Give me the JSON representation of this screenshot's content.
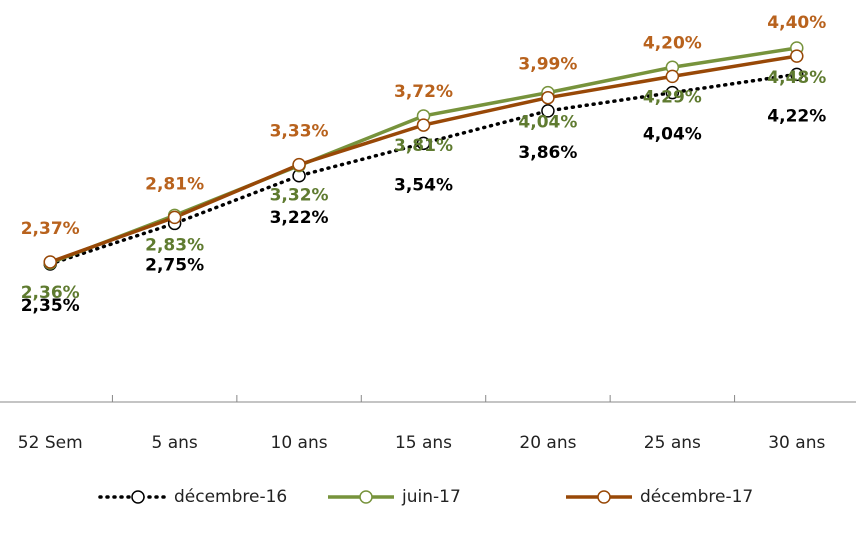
{
  "chart_data": {
    "type": "line",
    "categories": [
      "52 Sem",
      "5 ans",
      "10 ans",
      "15 ans",
      "20 ans",
      "25 ans",
      "30 ans"
    ],
    "series": [
      {
        "name": "décembre-16",
        "color": "#000000",
        "label_color": "#000000",
        "dash": "dotted",
        "values": [
          2.35,
          2.75,
          3.22,
          3.54,
          3.86,
          4.04,
          4.22
        ],
        "value_labels": [
          "2,35%",
          "2,75%",
          "3,22%",
          "3,54%",
          "3,86%",
          "4,04%",
          "4,22%"
        ]
      },
      {
        "name": "juin-17",
        "color": "#77933c",
        "label_color": "#5f7b30",
        "dash": "solid",
        "values": [
          2.36,
          2.83,
          3.32,
          3.81,
          4.04,
          4.29,
          4.48
        ],
        "value_labels": [
          "2,36%",
          "2,83%",
          "3,32%",
          "3,81%",
          "4,04%",
          "4,29%",
          "4,48%"
        ]
      },
      {
        "name": "décembre-17",
        "color": "#984807",
        "label_color": "#b8621d",
        "dash": "solid",
        "values": [
          2.37,
          2.81,
          3.33,
          3.72,
          3.99,
          4.2,
          4.4
        ],
        "value_labels": [
          "2,37%",
          "2,81%",
          "3,33%",
          "3,72%",
          "3,99%",
          "4,20%",
          "4,40%"
        ]
      }
    ],
    "legend": "bottom",
    "grid": false
  }
}
